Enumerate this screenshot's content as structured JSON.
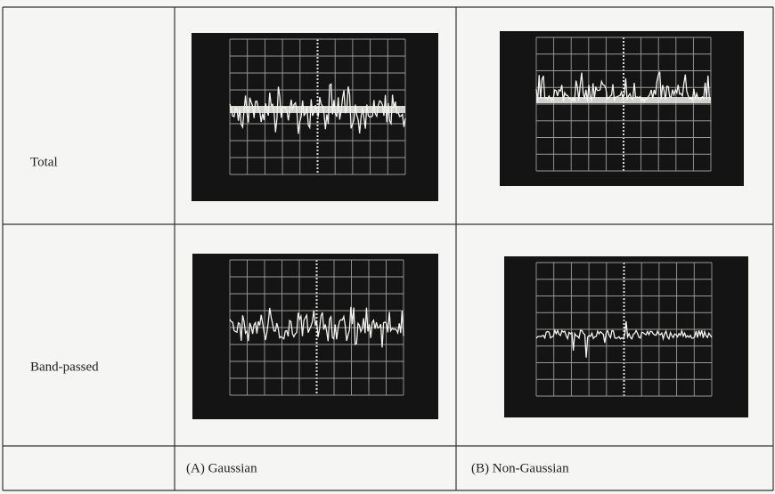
{
  "table": {
    "row_labels": [
      "Total",
      "Band-passed"
    ],
    "column_labels": [
      "(A) Gaussian",
      "(B) Non-Gaussian"
    ]
  }
}
